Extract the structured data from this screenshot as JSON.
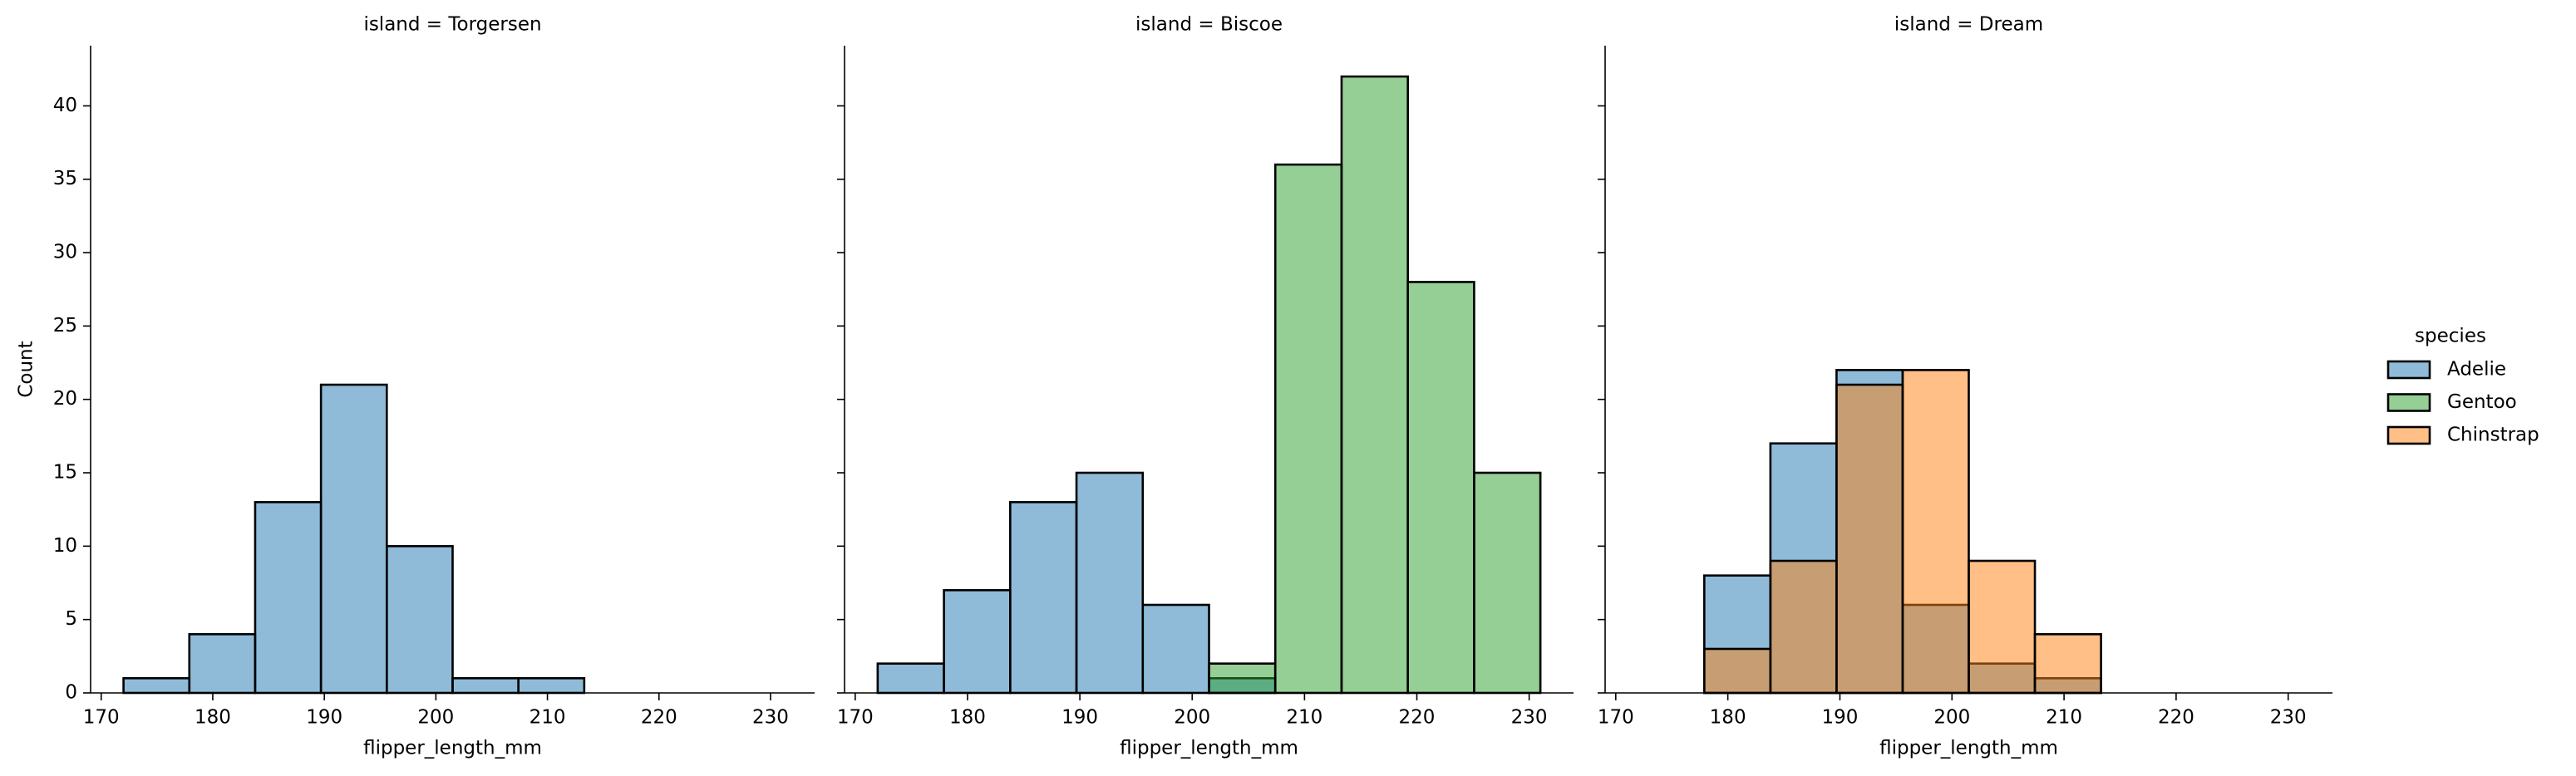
{
  "chart_data": [
    {
      "type": "histogram",
      "title": "island = Torgersen",
      "xlabel": "flipper_length_mm",
      "ylabel": "Count",
      "bins": [
        172,
        177.9,
        183.8,
        189.7,
        195.6,
        201.5,
        207.4,
        213.3,
        219.2,
        225.1,
        231
      ],
      "series": [
        {
          "name": "Adelie",
          "color": "#1f77b4",
          "values": [
            1,
            4,
            13,
            21,
            10,
            1,
            1,
            0,
            0,
            0
          ]
        }
      ],
      "xlim": [
        169.05,
        233.95
      ],
      "xticks": [
        170,
        180,
        190,
        200,
        210,
        220,
        230
      ],
      "ylim": [
        0,
        44.1
      ],
      "yticks": [
        0,
        5,
        10,
        15,
        20,
        25,
        30,
        35,
        40
      ],
      "alpha": 0.5
    },
    {
      "type": "histogram",
      "title": "island = Biscoe",
      "xlabel": "flipper_length_mm",
      "bins": [
        172,
        177.9,
        183.8,
        189.7,
        195.6,
        201.5,
        207.4,
        213.3,
        219.2,
        225.1,
        231
      ],
      "series": [
        {
          "name": "Adelie",
          "color": "#1f77b4",
          "values": [
            2,
            7,
            13,
            15,
            6,
            1,
            0,
            0,
            0,
            0
          ]
        },
        {
          "name": "Gentoo",
          "color": "#2ca02c",
          "values": [
            0,
            0,
            0,
            0,
            0,
            2,
            36,
            42,
            28,
            15
          ]
        }
      ],
      "xlim": [
        169.05,
        233.95
      ],
      "xticks": [
        170,
        180,
        190,
        200,
        210,
        220,
        230
      ],
      "ylim": [
        0,
        44.1
      ],
      "yticks": [
        0,
        5,
        10,
        15,
        20,
        25,
        30,
        35,
        40
      ],
      "alpha": 0.5
    },
    {
      "type": "histogram",
      "title": "island = Dream",
      "xlabel": "flipper_length_mm",
      "legend_title": "species",
      "bins": [
        172,
        177.9,
        183.8,
        189.7,
        195.6,
        201.5,
        207.4,
        213.3,
        219.2,
        225.1,
        231
      ],
      "series": [
        {
          "name": "Adelie",
          "color": "#1f77b4",
          "values": [
            0,
            8,
            17,
            22,
            6,
            2,
            1,
            0,
            0,
            0
          ]
        },
        {
          "name": "Chinstrap",
          "color": "#ff7f0e",
          "values": [
            0,
            3,
            9,
            21,
            22,
            9,
            4,
            0,
            0,
            0
          ]
        }
      ],
      "xlim": [
        169.05,
        233.95
      ],
      "xticks": [
        170,
        180,
        190,
        200,
        210,
        220,
        230
      ],
      "ylim": [
        0,
        44.1
      ],
      "yticks": [
        0,
        5,
        10,
        15,
        20,
        25,
        30,
        35,
        40
      ],
      "alpha": 0.5
    }
  ]
}
